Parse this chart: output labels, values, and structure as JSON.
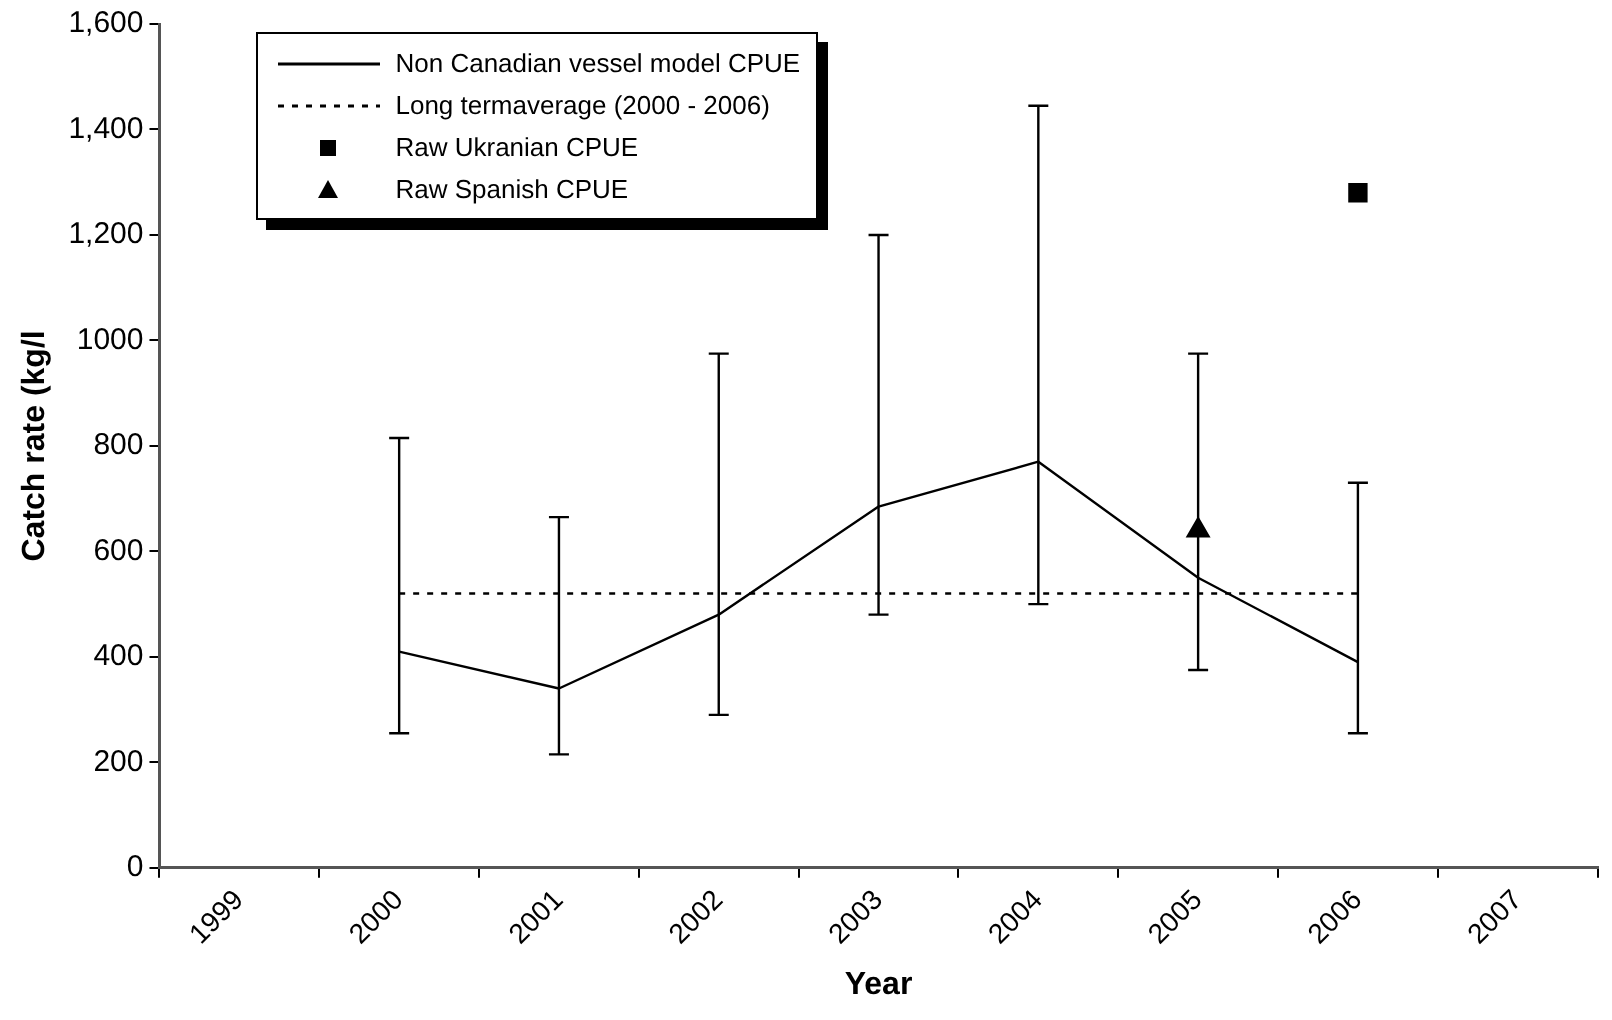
{
  "chart_data": {
    "type": "line",
    "xlabel": "Year",
    "ylabel": "Catch rate (kg/l",
    "categories": [
      "1999",
      "2000",
      "2001",
      "2002",
      "2003",
      "2004",
      "2005",
      "2006",
      "2007"
    ],
    "series": [
      {
        "name": "Non Canadian vessel model CPUE",
        "type": "line",
        "color": "#000000",
        "marker": "none",
        "line_style": "solid",
        "values": [
          null,
          410,
          340,
          480,
          685,
          770,
          550,
          390,
          null
        ],
        "errors": [
          null,
          [
            255,
            815
          ],
          [
            215,
            665
          ],
          [
            290,
            975
          ],
          [
            480,
            1200
          ],
          [
            500,
            1445
          ],
          [
            375,
            975
          ],
          [
            255,
            730
          ],
          null
        ]
      },
      {
        "name": "Long termaverage (2000 - 2006)",
        "type": "line",
        "color": "#000000",
        "marker": "none",
        "line_style": "dotted",
        "values": [
          null,
          520,
          520,
          520,
          520,
          520,
          520,
          520,
          null
        ]
      },
      {
        "name": "Raw Ukranian CPUE",
        "type": "scatter",
        "color": "#000000",
        "marker": "square",
        "values": [
          null,
          null,
          null,
          null,
          null,
          null,
          null,
          1280,
          null
        ]
      },
      {
        "name": "Raw Spanish CPUE",
        "type": "scatter",
        "color": "#000000",
        "marker": "triangle",
        "values": [
          null,
          null,
          null,
          null,
          null,
          null,
          640,
          null,
          null
        ]
      }
    ],
    "ylim": [
      0,
      1600
    ],
    "yticks": [
      0,
      200,
      400,
      600,
      800,
      1000,
      {
        "value": 1200,
        "label": "1,200"
      },
      {
        "value": 1400,
        "label": "1,400"
      },
      {
        "value": 1600,
        "label": "1,600"
      }
    ],
    "legend": "top left"
  }
}
